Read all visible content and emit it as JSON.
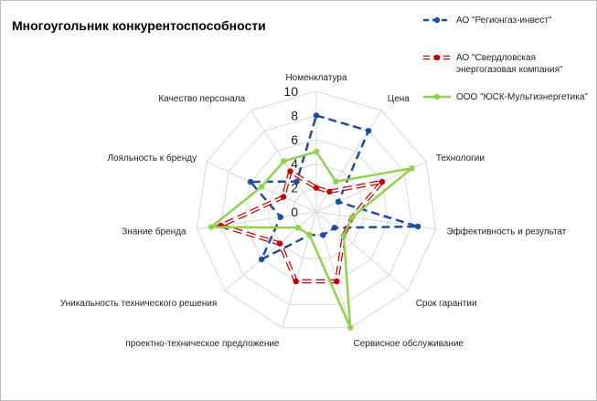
{
  "chart_data": {
    "type": "radar",
    "title": "Многоугольник конкурентоспособности",
    "categories": [
      "Номенклатура",
      "Цена",
      "Технологии",
      "Эффективность и результат",
      "Срок гарантии",
      "Сервисное обслуживание",
      "проектно-техническое предложение",
      "Уникальность технического решения",
      "Знание бренда",
      "Лояльность к бренду",
      "Качество персонала"
    ],
    "r_ticks": [
      "0",
      "2",
      "4",
      "6",
      "8",
      "10"
    ],
    "rlim": [
      0,
      10
    ],
    "grid": true,
    "legend_position": "top-right",
    "series": [
      {
        "name": "АО \"Регионгаз-инвест\"",
        "color": "#1f4e9c",
        "line_style": "dashed",
        "values": [
          8,
          8,
          2,
          8.5,
          2,
          2,
          2,
          6,
          3,
          6,
          3
        ]
      },
      {
        "name": "АО \"Свердловская энергогазовая компания\"",
        "color": "#c00000",
        "line_style": "dash-outline",
        "values": [
          2,
          2,
          6,
          3,
          3,
          6,
          6,
          4,
          8,
          3,
          4
        ]
      },
      {
        "name": "ООО \"ЮСК-Мультиэнергетика\"",
        "color": "#92d050",
        "line_style": "solid",
        "values": [
          5,
          3,
          8.7,
          3,
          3,
          10,
          2,
          2,
          8.8,
          5,
          5
        ]
      }
    ]
  }
}
